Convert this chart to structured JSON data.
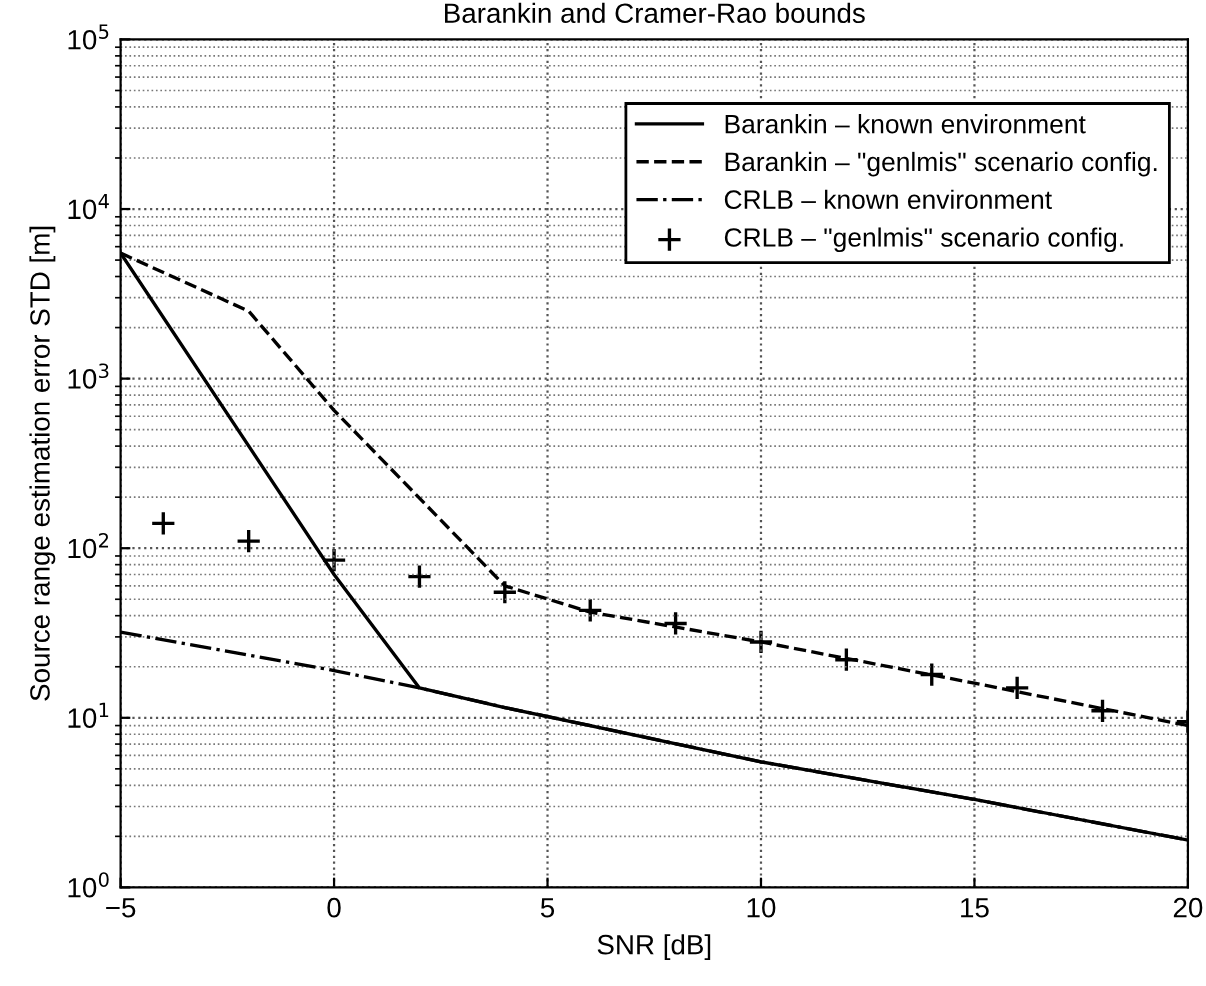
{
  "chart_data": {
    "type": "line",
    "title": "Barankin and Cramer-Rao bounds",
    "xlabel": "SNR [dB]",
    "ylabel": "Source range estimation error STD [m]",
    "log": "y",
    "xlim": [
      -5,
      20
    ],
    "xticks": [
      {
        "value": -5,
        "label": "−5"
      },
      0,
      5,
      10,
      15,
      20
    ],
    "ylim": [
      1,
      100000
    ],
    "yticks": [
      {
        "value": 1,
        "label": "10$^{0}$"
      },
      {
        "value": 10,
        "label": "10$^{1}$"
      },
      {
        "value": 100,
        "label": "10$^{2}$"
      },
      {
        "value": 1000,
        "label": "10$^{3}$"
      },
      {
        "value": 10000,
        "label": "10$^{4}$"
      },
      {
        "value": 100000,
        "label": "10$^{5}$"
      }
    ],
    "grid": true,
    "legend": "top right",
    "series": [
      {
        "name": "Barankin – known environment",
        "color": "#000000",
        "line_style": "solid",
        "marker": "none",
        "x": [
          -5,
          0,
          2,
          4,
          10,
          15,
          20
        ],
        "values": [
          5500,
          70,
          15,
          11.5,
          5.5,
          3.3,
          1.9
        ]
      },
      {
        "name": "Barankin – \"genlmis\" scenario config.",
        "color": "#000000",
        "line_style": "dashed",
        "marker": "none",
        "x": [
          -5,
          -2,
          0,
          4,
          6,
          10,
          15,
          20
        ],
        "values": [
          5500,
          2500,
          650,
          60,
          42,
          28,
          16,
          9
        ]
      },
      {
        "name": "CRLB – known environment",
        "color": "#000000",
        "line_style": "dashdot",
        "marker": "none",
        "x": [
          -5,
          0,
          2,
          4,
          10,
          15,
          20
        ],
        "values": [
          32,
          19,
          15,
          11.5,
          5.5,
          3.3,
          1.9
        ]
      },
      {
        "name": "CRLB – \"genlmis\" scenario config.",
        "type": "scatter",
        "color": "#000000",
        "marker": "cross",
        "x": [
          -4,
          -2,
          0,
          2,
          4,
          6,
          8,
          10,
          12,
          14,
          16,
          18,
          20
        ],
        "values": [
          140,
          110,
          85,
          68,
          55,
          43,
          36,
          28,
          22,
          18,
          15,
          11,
          9.5
        ]
      }
    ]
  }
}
